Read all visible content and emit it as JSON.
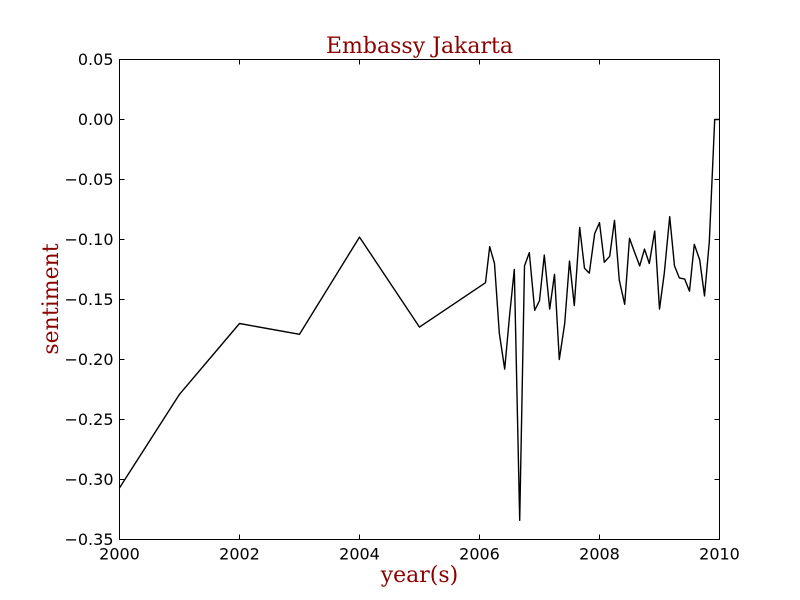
{
  "chart_data": {
    "type": "line",
    "title": "Embassy Jakarta",
    "xlabel": "year(s)",
    "ylabel": "sentiment",
    "xlim": [
      2000,
      2010
    ],
    "ylim": [
      -0.35,
      0.05
    ],
    "grid": false,
    "x_ticks": [
      2000,
      2002,
      2004,
      2006,
      2008,
      2010
    ],
    "x_tick_labels": [
      "2000",
      "2002",
      "2004",
      "2006",
      "2008",
      "2010"
    ],
    "y_ticks": [
      0.05,
      0.0,
      -0.05,
      -0.1,
      -0.15,
      -0.2,
      -0.25,
      -0.3,
      -0.35
    ],
    "y_tick_labels": [
      "0.05",
      "0.00",
      "−0.05",
      "−0.10",
      "−0.15",
      "−0.20",
      "−0.25",
      "−0.30",
      "−0.35"
    ],
    "series": [
      {
        "color": "#000000",
        "x": [
          2000.0,
          2001.0,
          2002.0,
          2003.0,
          2004.0,
          2005.0,
          2006.1,
          2006.17,
          2006.25,
          2006.33,
          2006.42,
          2006.5,
          2006.58,
          2006.67,
          2006.75,
          2006.83,
          2006.92,
          2007.0,
          2007.08,
          2007.17,
          2007.25,
          2007.33,
          2007.42,
          2007.5,
          2007.58,
          2007.67,
          2007.75,
          2007.83,
          2007.92,
          2008.0,
          2008.08,
          2008.17,
          2008.25,
          2008.33,
          2008.42,
          2008.5,
          2008.58,
          2008.67,
          2008.75,
          2008.83,
          2008.92,
          2009.0,
          2009.08,
          2009.17,
          2009.25,
          2009.33,
          2009.42,
          2009.5,
          2009.58,
          2009.67,
          2009.75,
          2009.83,
          2009.92,
          2010.0
        ],
        "y": [
          -0.307,
          -0.229,
          -0.17,
          -0.179,
          -0.098,
          -0.173,
          -0.136,
          -0.106,
          -0.12,
          -0.178,
          -0.208,
          -0.164,
          -0.125,
          -0.334,
          -0.122,
          -0.111,
          -0.159,
          -0.151,
          -0.113,
          -0.158,
          -0.129,
          -0.2,
          -0.17,
          -0.118,
          -0.155,
          -0.09,
          -0.124,
          -0.128,
          -0.095,
          -0.086,
          -0.119,
          -0.114,
          -0.084,
          -0.134,
          -0.154,
          -0.099,
          -0.11,
          -0.122,
          -0.108,
          -0.12,
          -0.093,
          -0.158,
          -0.128,
          -0.081,
          -0.122,
          -0.132,
          -0.133,
          -0.143,
          -0.104,
          -0.117,
          -0.147,
          -0.102,
          0.0,
          0.0
        ]
      }
    ]
  }
}
